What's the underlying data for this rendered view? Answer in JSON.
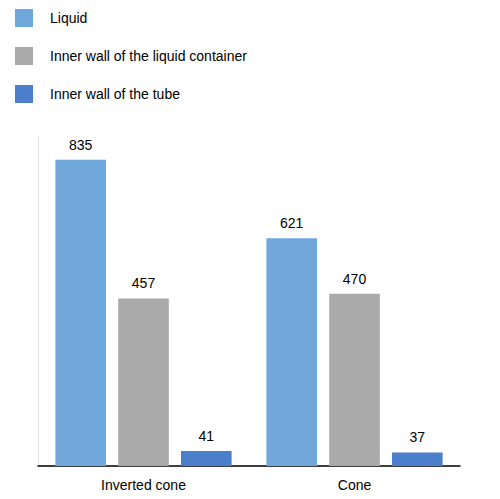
{
  "chart_data": {
    "type": "bar",
    "categories": [
      "Inverted cone",
      "Cone"
    ],
    "series": [
      {
        "name": "Liquid",
        "color": "#70a8dc",
        "values": [
          835,
          621
        ]
      },
      {
        "name": "Inner wall of the liquid container",
        "color": "#aaaaaa",
        "values": [
          457,
          470
        ]
      },
      {
        "name": "Inner wall of the tube",
        "color": "#4c7fcb",
        "values": [
          41,
          37
        ]
      }
    ],
    "ylim": [
      0,
      900
    ],
    "legend": "top-left",
    "data_labels": true,
    "tick_labels": "x",
    "grid": false
  }
}
